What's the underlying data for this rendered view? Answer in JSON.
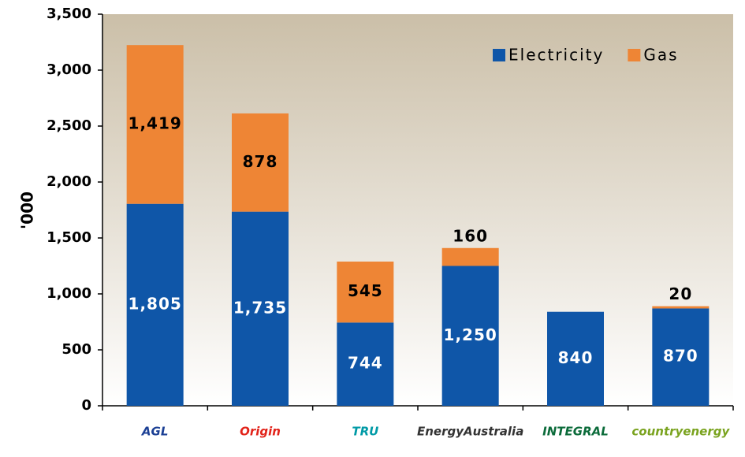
{
  "chart_data": {
    "type": "stacked_bar",
    "categories": [
      "AGL",
      "Origin",
      "TRU",
      "EnergyAustralia",
      "INTEGRAL",
      "countryenergy"
    ],
    "series": [
      {
        "name": "Electricity",
        "color": "#0f56a8",
        "values": [
          1805,
          1735,
          744,
          1250,
          840,
          870
        ],
        "value_labels": [
          "1,805",
          "1,735",
          "744",
          "1,250",
          "840",
          "870"
        ]
      },
      {
        "name": "Gas",
        "color": "#ee8535",
        "values": [
          1419,
          878,
          545,
          160,
          null,
          20
        ],
        "value_labels": [
          "1,419",
          "878",
          "545",
          "160",
          null,
          "20"
        ]
      }
    ],
    "ylabel": "'000",
    "ylim": [
      0,
      3500
    ],
    "yticks": [
      0,
      500,
      {
        "value": 1000,
        "label": "1,000"
      },
      {
        "value": 1500,
        "label": "1,500"
      },
      {
        "value": 2000,
        "label": "2,000"
      },
      {
        "value": 2500,
        "label": "2,500"
      },
      {
        "value": 3000,
        "label": "3,000"
      },
      {
        "value": 3500,
        "label": "3,500"
      }
    ],
    "legend": "top-right"
  }
}
